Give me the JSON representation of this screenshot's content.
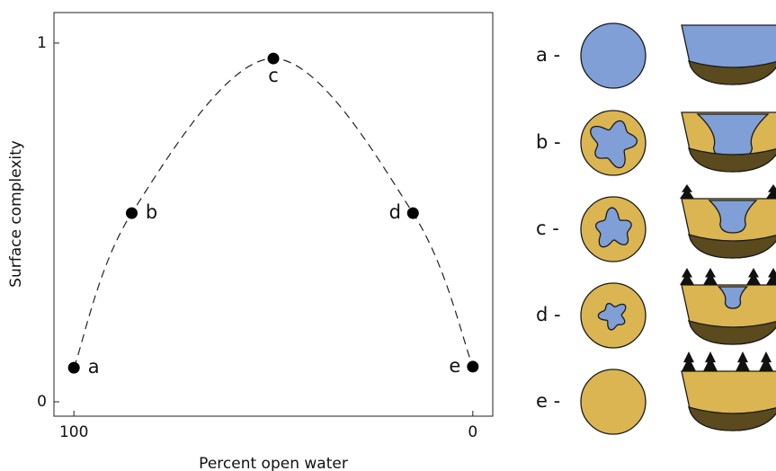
{
  "chart_data": {
    "type": "scatter",
    "x_label": "Percent open water",
    "y_label": "Surface complexity",
    "x": [
      100,
      85.5,
      50,
      15,
      0
    ],
    "values": [
      0.095,
      0.526,
      0.957,
      0.526,
      0.098
    ],
    "point_labels": [
      "a",
      "b",
      "c",
      "d",
      "e"
    ],
    "color": "#000000",
    "xlim": [
      105,
      -5
    ],
    "ylim": [
      -0.04,
      1.085
    ],
    "xticks": [
      100,
      0
    ],
    "yticks": [
      0,
      1
    ],
    "fit_line": "dashed"
  },
  "diagram": {
    "row_labels": [
      "a -",
      "b -",
      "c -",
      "d -",
      "e -"
    ]
  }
}
